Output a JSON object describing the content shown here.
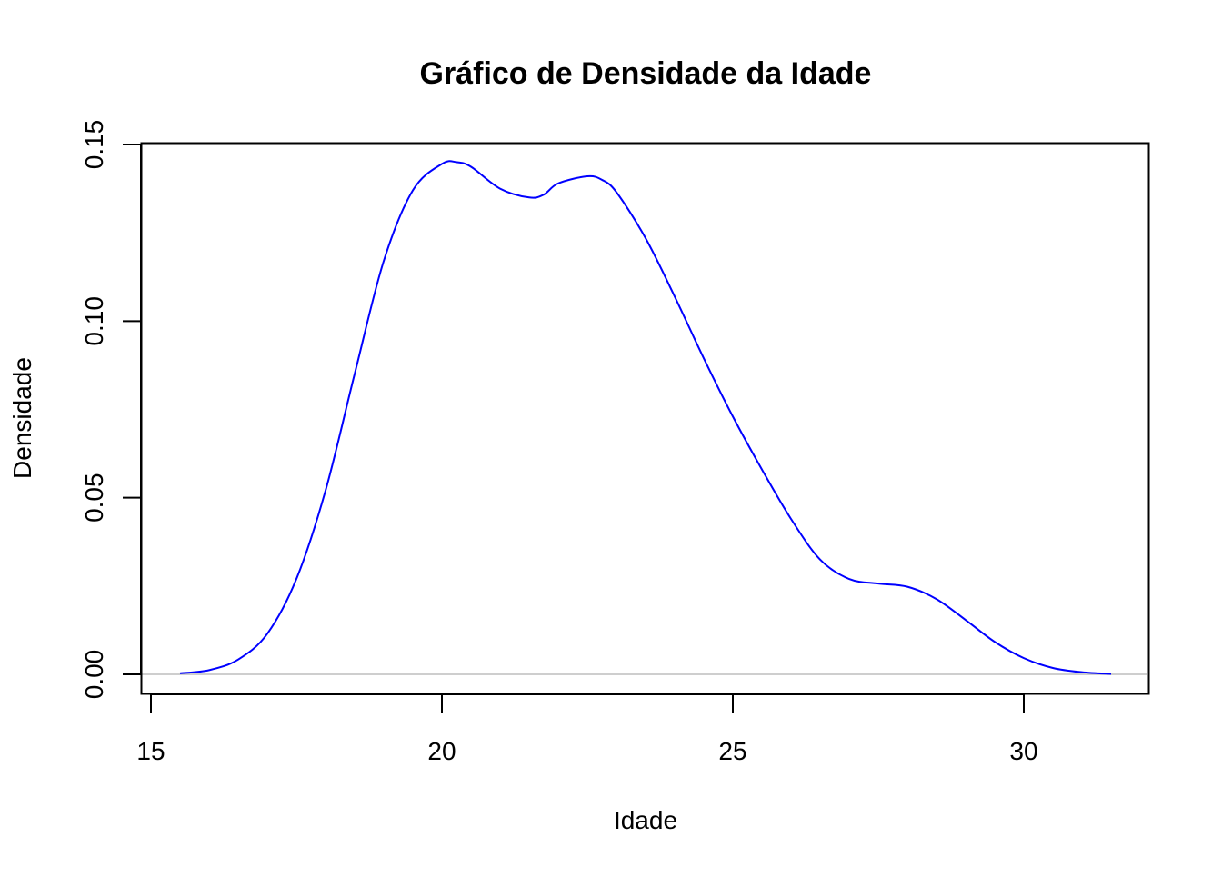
{
  "chart_data": {
    "type": "line",
    "title": "Gráfico de Densidade da Idade",
    "xlabel": "Idade",
    "ylabel": "Densidade",
    "xlim": [
      15,
      32
    ],
    "ylim": [
      0,
      0.15
    ],
    "x_ticks": [
      15,
      20,
      25,
      30
    ],
    "x_tick_labels": [
      "15",
      "20",
      "25",
      "30"
    ],
    "y_ticks": [
      0,
      0.05,
      0.1,
      0.15
    ],
    "y_tick_labels": [
      "0.00",
      "0.05",
      "0.10",
      "0.15"
    ],
    "grid": false,
    "zero_line": true,
    "colors": {
      "series": "#0000FF",
      "zero_line": "#BEBEBE",
      "axes": "#000000"
    },
    "series": [
      {
        "x": [
          15.5,
          16.0,
          16.5,
          17.0,
          17.5,
          18.0,
          18.5,
          19.0,
          19.5,
          20.0,
          20.25,
          20.5,
          21.0,
          21.5,
          21.75,
          22.0,
          22.5,
          22.75,
          23.0,
          23.5,
          24.0,
          24.5,
          25.0,
          25.5,
          26.0,
          26.5,
          27.0,
          27.5,
          28.0,
          28.5,
          29.0,
          29.5,
          30.0,
          30.5,
          31.0,
          31.5
        ],
        "y": [
          0.0003,
          0.0012,
          0.0042,
          0.0115,
          0.027,
          0.052,
          0.085,
          0.117,
          0.137,
          0.1445,
          0.145,
          0.1437,
          0.1375,
          0.135,
          0.1358,
          0.139,
          0.141,
          0.14,
          0.1365,
          0.1235,
          0.107,
          0.0895,
          0.073,
          0.058,
          0.044,
          0.0325,
          0.027,
          0.0257,
          0.0248,
          0.0213,
          0.0154,
          0.0092,
          0.0046,
          0.0018,
          0.0006,
          0.0001
        ]
      }
    ]
  }
}
